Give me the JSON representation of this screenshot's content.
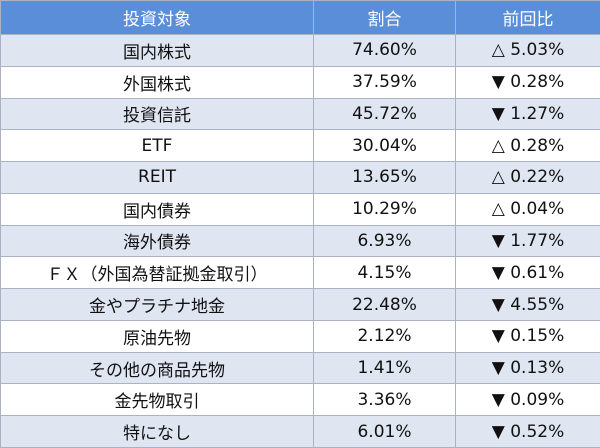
{
  "table": {
    "header": [
      "投資対象",
      "割合",
      "前回比"
    ],
    "rows": [
      [
        "国内株式",
        "74.60%",
        "△ 5.03%"
      ],
      [
        "外国株式",
        "37.59%",
        "▼ 0.28%"
      ],
      [
        "投資信託",
        "45.72%",
        "▼ 1.27%"
      ],
      [
        "ETF",
        "30.04%",
        "△ 0.28%"
      ],
      [
        "REIT",
        "13.65%",
        "△ 0.22%"
      ],
      [
        "国内債券",
        "10.29%",
        "△ 0.04%"
      ],
      [
        "海外債券",
        "6.93%",
        "▼ 1.77%"
      ],
      [
        "ＦＸ（外国為替証拠金取引）",
        "4.15%",
        "▼ 0.61%"
      ],
      [
        "金やプラチナ地金",
        "22.48%",
        "▼ 4.55%"
      ],
      [
        "原油先物",
        "2.12%",
        "▼ 0.15%"
      ],
      [
        "その他の商品先物",
        "1.41%",
        "▼ 0.13%"
      ],
      [
        "金先物取引",
        "3.36%",
        "▼ 0.09%"
      ],
      [
        "特になし",
        "6.01%",
        "▼ 0.52%"
      ]
    ]
  }
}
